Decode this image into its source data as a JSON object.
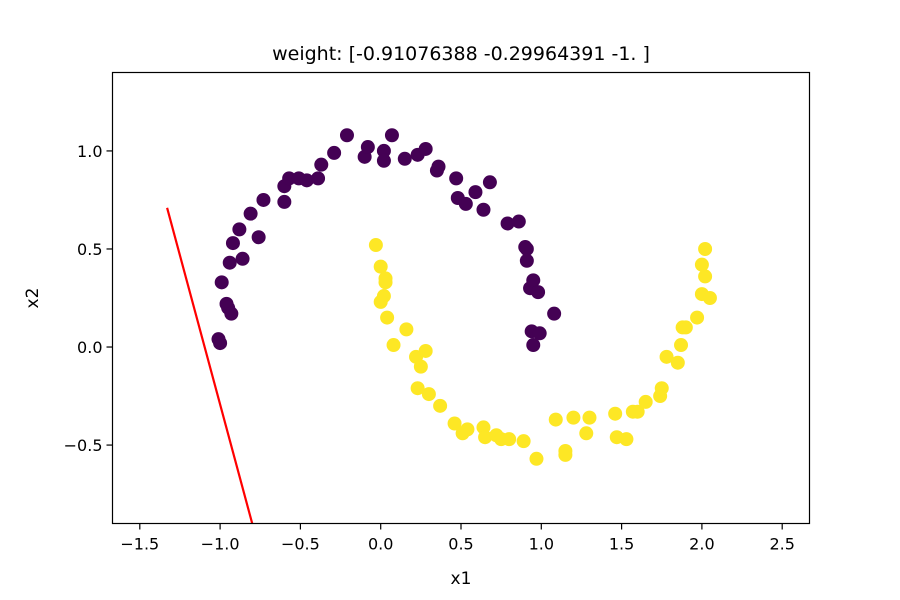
{
  "chart_data": {
    "type": "scatter",
    "title": "weight: [-0.91076388 -0.29964391 -1.         ]",
    "xlabel": "x1",
    "ylabel": "x2",
    "xlim": [
      -1.67,
      2.67
    ],
    "ylim": [
      -0.9,
      1.4
    ],
    "xticks": [
      -1.5,
      -1.0,
      -0.5,
      0.0,
      0.5,
      1.0,
      1.5,
      2.0,
      2.5
    ],
    "xtick_labels": [
      "−1.5",
      "−1.0",
      "−0.5",
      "0.0",
      "0.5",
      "1.0",
      "1.5",
      "2.0",
      "2.5"
    ],
    "yticks": [
      -0.5,
      0.0,
      0.5,
      1.0
    ],
    "ytick_labels": [
      "−0.5",
      "0.0",
      "0.5",
      "1.0"
    ],
    "grid": false,
    "legend": "none",
    "colors": {
      "class0": "#440154",
      "class1": "#fde725",
      "line": "#ff0000"
    },
    "series": [
      {
        "class": 0,
        "color": "#440154",
        "points": [
          [
            -1.01,
            0.04
          ],
          [
            -1.0,
            0.02
          ],
          [
            -0.99,
            0.33
          ],
          [
            -0.96,
            0.22
          ],
          [
            -0.95,
            0.2
          ],
          [
            -0.93,
            0.17
          ],
          [
            -0.94,
            0.43
          ],
          [
            -0.92,
            0.53
          ],
          [
            -0.86,
            0.45
          ],
          [
            -0.88,
            0.6
          ],
          [
            -0.81,
            0.68
          ],
          [
            -0.76,
            0.56
          ],
          [
            -0.73,
            0.75
          ],
          [
            -0.6,
            0.74
          ],
          [
            -0.6,
            0.82
          ],
          [
            -0.57,
            0.86
          ],
          [
            -0.51,
            0.86
          ],
          [
            -0.46,
            0.85
          ],
          [
            -0.39,
            0.86
          ],
          [
            -0.37,
            0.93
          ],
          [
            -0.29,
            0.99
          ],
          [
            -0.21,
            1.08
          ],
          [
            -0.1,
            0.97
          ],
          [
            -0.08,
            1.02
          ],
          [
            0.02,
            1.0
          ],
          [
            0.02,
            0.95
          ],
          [
            0.07,
            1.08
          ],
          [
            0.15,
            0.96
          ],
          [
            0.23,
            0.98
          ],
          [
            0.28,
            1.01
          ],
          [
            0.35,
            0.9
          ],
          [
            0.36,
            0.92
          ],
          [
            0.47,
            0.86
          ],
          [
            0.48,
            0.76
          ],
          [
            0.53,
            0.73
          ],
          [
            0.59,
            0.79
          ],
          [
            0.64,
            0.7
          ],
          [
            0.68,
            0.84
          ],
          [
            0.79,
            0.63
          ],
          [
            0.86,
            0.64
          ],
          [
            0.9,
            0.51
          ],
          [
            0.91,
            0.5
          ],
          [
            0.91,
            0.44
          ],
          [
            0.93,
            0.3
          ],
          [
            0.95,
            0.34
          ],
          [
            0.98,
            0.28
          ],
          [
            0.94,
            0.08
          ],
          [
            0.99,
            0.07
          ],
          [
            0.95,
            0.01
          ],
          [
            1.08,
            0.17
          ]
        ]
      },
      {
        "class": 1,
        "color": "#fde725",
        "points": [
          [
            -0.03,
            0.52
          ],
          [
            0.0,
            0.41
          ],
          [
            0.03,
            0.35
          ],
          [
            0.03,
            0.33
          ],
          [
            0.02,
            0.26
          ],
          [
            0.0,
            0.23
          ],
          [
            0.04,
            0.15
          ],
          [
            0.08,
            0.01
          ],
          [
            0.16,
            0.09
          ],
          [
            0.22,
            -0.05
          ],
          [
            0.25,
            -0.1
          ],
          [
            0.28,
            -0.02
          ],
          [
            0.23,
            -0.21
          ],
          [
            0.3,
            -0.24
          ],
          [
            0.37,
            -0.3
          ],
          [
            0.46,
            -0.39
          ],
          [
            0.51,
            -0.44
          ],
          [
            0.54,
            -0.42
          ],
          [
            0.64,
            -0.41
          ],
          [
            0.65,
            -0.46
          ],
          [
            0.72,
            -0.45
          ],
          [
            0.75,
            -0.47
          ],
          [
            0.8,
            -0.47
          ],
          [
            0.89,
            -0.48
          ],
          [
            0.97,
            -0.57
          ],
          [
            1.09,
            -0.37
          ],
          [
            1.15,
            -0.53
          ],
          [
            1.15,
            -0.55
          ],
          [
            1.2,
            -0.36
          ],
          [
            1.28,
            -0.44
          ],
          [
            1.3,
            -0.36
          ],
          [
            1.46,
            -0.34
          ],
          [
            1.47,
            -0.46
          ],
          [
            1.53,
            -0.47
          ],
          [
            1.57,
            -0.33
          ],
          [
            1.6,
            -0.33
          ],
          [
            1.65,
            -0.28
          ],
          [
            1.74,
            -0.25
          ],
          [
            1.75,
            -0.21
          ],
          [
            1.78,
            -0.05
          ],
          [
            1.85,
            -0.08
          ],
          [
            1.87,
            0.01
          ],
          [
            1.88,
            0.1
          ],
          [
            1.9,
            0.1
          ],
          [
            1.97,
            0.15
          ],
          [
            2.0,
            0.27
          ],
          [
            2.0,
            0.42
          ],
          [
            2.02,
            0.36
          ],
          [
            2.02,
            0.5
          ],
          [
            2.05,
            0.25
          ]
        ]
      }
    ],
    "decision_line": {
      "color": "#ff0000",
      "x": [
        -1.33,
        -0.8
      ],
      "y": [
        0.71,
        -0.9
      ]
    }
  }
}
